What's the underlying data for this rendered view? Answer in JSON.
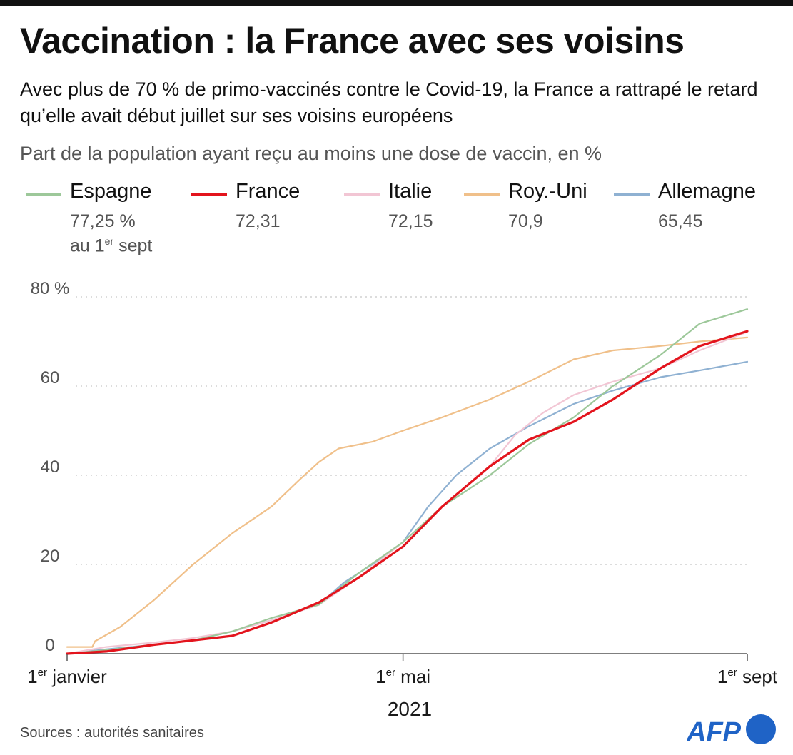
{
  "header": {
    "title": "Vaccination : la France avec ses voisins",
    "subtitle": "Avec plus de 70 % de primo-vaccinés contre le Covid-19, la France a rattrapé le retard qu’elle avait début juillet sur ses voisins européens",
    "measure": "Part de la population ayant reçu au moins une dose de vaccin, en %"
  },
  "legend": {
    "items": [
      {
        "name": "Espagne",
        "value": "77,25 %",
        "color": "#9dc89a"
      },
      {
        "name": "France",
        "value": "72,31",
        "color": "#e3141d"
      },
      {
        "name": "Italie",
        "value": "72,15",
        "color": "#f2c6d4"
      },
      {
        "name": "Roy.-Uni",
        "value": "70,9",
        "color": "#f0c08a"
      },
      {
        "name": "Allemagne",
        "value": "65,45",
        "color": "#8fb1d2"
      }
    ],
    "note_prefix": "au 1",
    "note_sup": "er",
    "note_suffix": " sept"
  },
  "chart_data": {
    "type": "line",
    "year_label": "2021",
    "x_unit": "date",
    "x_range": [
      "2021-01-01",
      "2021-09-01"
    ],
    "y_range": [
      0,
      80
    ],
    "y_ticks": [
      {
        "value": 0,
        "label": "0"
      },
      {
        "value": 20,
        "label": "20"
      },
      {
        "value": 40,
        "label": "40"
      },
      {
        "value": 60,
        "label": "60"
      },
      {
        "value": 80,
        "label": "80 %"
      }
    ],
    "x_ticks": [
      {
        "date": "2021-01-01",
        "prefix": "1",
        "sup": "er",
        "suffix": " janvier"
      },
      {
        "date": "2021-05-01",
        "prefix": "1",
        "sup": "er",
        "suffix": " mai"
      },
      {
        "date": "2021-09-01",
        "prefix": "1",
        "sup": "er",
        "suffix": " sept"
      }
    ],
    "grid": "horizontal dotted",
    "series": [
      {
        "name": "Roy.-Uni",
        "color": "#f0c08a",
        "width": 2.2,
        "points": [
          [
            "2021-01-01",
            1.5
          ],
          [
            "2021-01-10",
            1.5
          ],
          [
            "2021-01-11",
            2.8
          ],
          [
            "2021-01-20",
            6
          ],
          [
            "2021-02-01",
            12
          ],
          [
            "2021-02-15",
            20
          ],
          [
            "2021-03-01",
            27
          ],
          [
            "2021-03-15",
            33
          ],
          [
            "2021-03-25",
            39
          ],
          [
            "2021-04-01",
            43
          ],
          [
            "2021-04-08",
            46
          ],
          [
            "2021-04-20",
            47.5
          ],
          [
            "2021-05-01",
            50
          ],
          [
            "2021-05-15",
            53
          ],
          [
            "2021-06-01",
            57
          ],
          [
            "2021-06-15",
            61
          ],
          [
            "2021-07-01",
            66
          ],
          [
            "2021-07-15",
            68
          ],
          [
            "2021-08-01",
            69
          ],
          [
            "2021-08-15",
            70
          ],
          [
            "2021-09-01",
            70.9
          ]
        ]
      },
      {
        "name": "Allemagne",
        "color": "#8fb1d2",
        "width": 2.2,
        "points": [
          [
            "2021-01-01",
            0
          ],
          [
            "2021-01-15",
            1
          ],
          [
            "2021-02-01",
            2
          ],
          [
            "2021-02-15",
            3
          ],
          [
            "2021-03-01",
            5
          ],
          [
            "2021-03-15",
            7.5
          ],
          [
            "2021-04-01",
            11
          ],
          [
            "2021-04-10",
            16
          ],
          [
            "2021-04-20",
            20
          ],
          [
            "2021-05-01",
            25
          ],
          [
            "2021-05-10",
            33
          ],
          [
            "2021-05-20",
            40
          ],
          [
            "2021-06-01",
            46
          ],
          [
            "2021-06-15",
            51
          ],
          [
            "2021-07-01",
            56
          ],
          [
            "2021-07-15",
            59
          ],
          [
            "2021-08-01",
            62
          ],
          [
            "2021-08-15",
            63.5
          ],
          [
            "2021-09-01",
            65.45
          ]
        ]
      },
      {
        "name": "Italie",
        "color": "#f2c6d4",
        "width": 2.2,
        "points": [
          [
            "2021-01-01",
            0
          ],
          [
            "2021-01-15",
            1.5
          ],
          [
            "2021-02-01",
            2.5
          ],
          [
            "2021-02-15",
            3.5
          ],
          [
            "2021-03-01",
            5
          ],
          [
            "2021-03-15",
            7.5
          ],
          [
            "2021-04-01",
            11
          ],
          [
            "2021-04-15",
            17
          ],
          [
            "2021-05-01",
            25
          ],
          [
            "2021-05-15",
            33
          ],
          [
            "2021-06-01",
            42
          ],
          [
            "2021-06-10",
            49
          ],
          [
            "2021-06-20",
            54
          ],
          [
            "2021-07-01",
            58
          ],
          [
            "2021-07-15",
            61
          ],
          [
            "2021-08-01",
            64
          ],
          [
            "2021-08-15",
            68
          ],
          [
            "2021-09-01",
            72.15
          ]
        ]
      },
      {
        "name": "Espagne",
        "color": "#9dc89a",
        "width": 2.2,
        "points": [
          [
            "2021-01-01",
            0
          ],
          [
            "2021-01-15",
            0.8
          ],
          [
            "2021-02-01",
            2
          ],
          [
            "2021-02-15",
            3
          ],
          [
            "2021-03-01",
            5
          ],
          [
            "2021-03-15",
            8
          ],
          [
            "2021-04-01",
            11
          ],
          [
            "2021-04-15",
            18
          ],
          [
            "2021-05-01",
            25
          ],
          [
            "2021-05-15",
            33
          ],
          [
            "2021-06-01",
            40
          ],
          [
            "2021-06-15",
            47
          ],
          [
            "2021-07-01",
            53
          ],
          [
            "2021-07-15",
            60
          ],
          [
            "2021-08-01",
            67
          ],
          [
            "2021-08-15",
            74
          ],
          [
            "2021-09-01",
            77.25
          ]
        ]
      },
      {
        "name": "France",
        "color": "#e3141d",
        "width": 3.2,
        "points": [
          [
            "2021-01-01",
            0
          ],
          [
            "2021-01-15",
            0.5
          ],
          [
            "2021-02-01",
            2
          ],
          [
            "2021-02-15",
            3
          ],
          [
            "2021-03-01",
            4
          ],
          [
            "2021-03-15",
            7
          ],
          [
            "2021-04-01",
            11.5
          ],
          [
            "2021-04-15",
            17
          ],
          [
            "2021-05-01",
            24
          ],
          [
            "2021-05-15",
            33
          ],
          [
            "2021-06-01",
            42
          ],
          [
            "2021-06-15",
            48
          ],
          [
            "2021-07-01",
            52
          ],
          [
            "2021-07-15",
            57
          ],
          [
            "2021-08-01",
            64
          ],
          [
            "2021-08-15",
            69
          ],
          [
            "2021-09-01",
            72.31
          ]
        ]
      }
    ]
  },
  "footer": {
    "sources": "Sources : autorités sanitaires",
    "logo_text": "AFP"
  }
}
